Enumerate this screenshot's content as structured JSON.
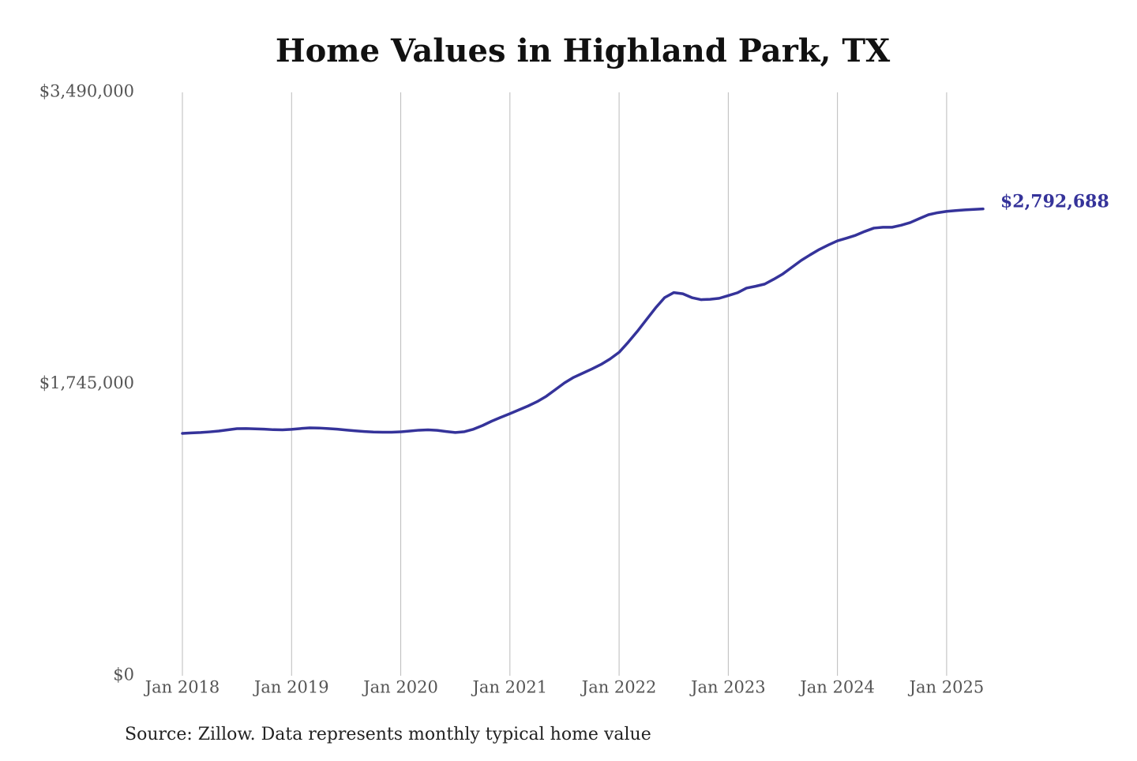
{
  "chart_data": {
    "type": "line",
    "title": "Home Values in Highland Park, TX",
    "source": "Source: Zillow. Data represents monthly typical home value",
    "categories": [
      "Jan 2018",
      null,
      null,
      null,
      null,
      null,
      null,
      null,
      null,
      null,
      null,
      null,
      "Jan 2019",
      null,
      null,
      null,
      null,
      null,
      null,
      null,
      null,
      null,
      null,
      null,
      "Jan 2020",
      null,
      null,
      null,
      null,
      null,
      null,
      null,
      null,
      null,
      null,
      null,
      "Jan 2021",
      null,
      null,
      null,
      null,
      null,
      null,
      null,
      null,
      null,
      null,
      null,
      "Jan 2022",
      null,
      null,
      null,
      null,
      null,
      null,
      null,
      null,
      null,
      null,
      null,
      "Jan 2023",
      null,
      null,
      null,
      null,
      null,
      null,
      null,
      null,
      null,
      null,
      null,
      "Jan 2024",
      null,
      null,
      null,
      null,
      null,
      null,
      null,
      null,
      null,
      null,
      null,
      "Jan 2025",
      null,
      null,
      null,
      null
    ],
    "series": [
      {
        "name": "Home value",
        "color": "#35339a",
        "values": [
          1450000,
          1453000,
          1455000,
          1459000,
          1464000,
          1471000,
          1478000,
          1479000,
          1477000,
          1475000,
          1472000,
          1471000,
          1474000,
          1479000,
          1483000,
          1482000,
          1479000,
          1475000,
          1470000,
          1465000,
          1461000,
          1458000,
          1457000,
          1457000,
          1459000,
          1464000,
          1469000,
          1471000,
          1468000,
          1461000,
          1455000,
          1460000,
          1475000,
          1497000,
          1523000,
          1546000,
          1568000,
          1591000,
          1614000,
          1640000,
          1672000,
          1712000,
          1752000,
          1785000,
          1810000,
          1835000,
          1862000,
          1895000,
          1935000,
          1995000,
          2060000,
          2130000,
          2200000,
          2262000,
          2292000,
          2285000,
          2262000,
          2250000,
          2252000,
          2258000,
          2274000,
          2291000,
          2319000,
          2330000,
          2343000,
          2372000,
          2404000,
          2444000,
          2484000,
          2518000,
          2550000,
          2577000,
          2602000,
          2618000,
          2635000,
          2658000,
          2678000,
          2683000,
          2683000,
          2695000,
          2711000,
          2735000,
          2758000,
          2770000,
          2778000,
          2783000,
          2787000,
          2790000,
          2792688
        ],
        "value_labels": [
          null,
          null,
          null,
          null,
          null,
          null,
          null,
          null,
          null,
          null,
          null,
          null,
          null,
          null,
          null,
          null,
          null,
          null,
          null,
          null,
          null,
          null,
          null,
          null,
          null,
          null,
          null,
          null,
          null,
          null,
          null,
          null,
          null,
          null,
          null,
          null,
          null,
          null,
          null,
          null,
          null,
          null,
          null,
          null,
          null,
          null,
          null,
          null,
          null,
          null,
          null,
          null,
          null,
          null,
          null,
          null,
          null,
          null,
          null,
          null,
          null,
          null,
          null,
          null,
          null,
          null,
          null,
          null,
          null,
          null,
          null,
          null,
          null,
          null,
          null,
          null,
          null,
          null,
          null,
          null,
          null,
          null,
          null,
          null,
          null,
          null,
          null,
          null,
          "$2,792,688"
        ]
      }
    ],
    "ylim": [
      0,
      3490000
    ],
    "yticks": [
      {
        "value": 0,
        "label": "$0"
      },
      {
        "value": 1745000,
        "label": "$1,745,000"
      },
      {
        "value": 3490000,
        "label": "$3,490,000"
      }
    ],
    "grid": "x"
  }
}
